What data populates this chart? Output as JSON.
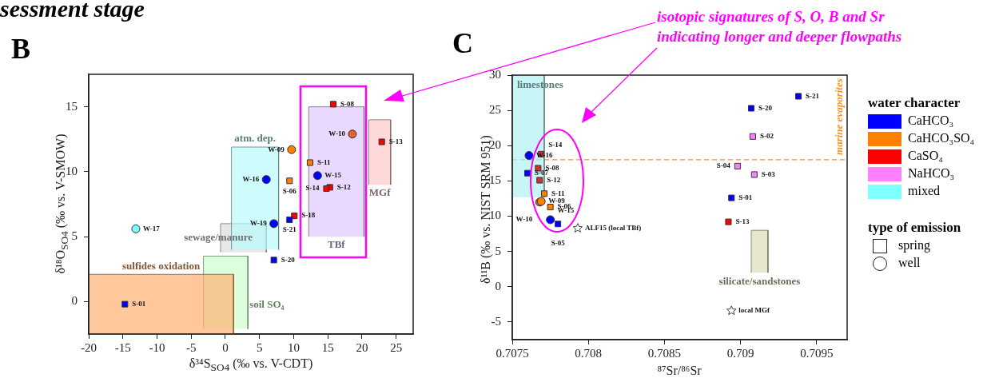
{
  "chart_data": [
    {
      "type": "scatter",
      "title": "B",
      "xlabel": "δ³⁴S$_{SO4}$ (‰ vs. V-CDT)",
      "ylabel": "δ¹⁸O$_{SO4}$ (‰ vs. V-SMOW)",
      "xlim": [
        -20,
        27.5
      ],
      "xticks": [
        -20,
        -15,
        -10,
        -5,
        0,
        5,
        10,
        15,
        20,
        25
      ],
      "ylim": [
        -2.5,
        17.5
      ],
      "yticks": [
        0,
        5,
        10,
        15
      ],
      "legend": "right",
      "annotations": [
        "sessment stage"
      ],
      "series": [
        {
          "type": "area",
          "name": "sulfides oxidation",
          "color": "#ffb070",
          "x": [
            -20,
            -20,
            1.2,
            1.2
          ],
          "values": [
            -2.5,
            2.1,
            2.1,
            -2.5
          ]
        },
        {
          "type": "area",
          "name": "soil SO₄",
          "color": "#ccffcc",
          "x": [
            -3.2,
            -3.2,
            3.3,
            3.3
          ],
          "values": [
            -2.1,
            3.5,
            3.5,
            -2.1
          ]
        },
        {
          "type": "area",
          "name": "atm. dep.",
          "color": "#b8fafa",
          "x": [
            0.9,
            0.9,
            7.8,
            7.8
          ],
          "values": [
            4.0,
            11.9,
            11.9,
            4.0
          ]
        },
        {
          "type": "area",
          "name": "sewage/manure",
          "color": "#dcdcdc",
          "x": [
            -0.7,
            -0.7,
            6.0,
            6.0
          ],
          "values": [
            3.8,
            6.0,
            6.0,
            3.8
          ]
        },
        {
          "type": "area",
          "name": "TBf",
          "color": "#e0c8ff",
          "x": [
            12.2,
            12.2,
            20.3,
            20.3
          ],
          "values": [
            5.0,
            15.0,
            15.0,
            5.0
          ]
        },
        {
          "type": "area",
          "name": "MGf",
          "color": "#ffc8c8",
          "x": [
            21.0,
            21.0,
            24.2,
            24.2
          ],
          "values": [
            9.0,
            14.0,
            14.0,
            9.0
          ]
        },
        {
          "name": "CaHCO₃",
          "marker": "square",
          "color": "#0000ff",
          "x": [
            -14.7,
            9.4,
            7.1
          ],
          "values": [
            -0.2,
            6.3,
            3.2
          ],
          "value_labels": [
            "S-01",
            "S-21",
            "S-20"
          ]
        },
        {
          "marker": "circle",
          "color": "#0000ff",
          "x": [
            6.0,
            13.5,
            7.1
          ],
          "values": [
            9.4,
            9.7,
            6.0
          ],
          "value_labels": [
            "W-16",
            "W-15",
            "W-19"
          ]
        },
        {
          "name": "CaHCO₃SO₄",
          "marker": "square",
          "color": "#ff8000",
          "x": [
            12.4,
            9.4
          ],
          "values": [
            10.7,
            9.3
          ],
          "value_labels": [
            "S-11",
            "S-06"
          ]
        },
        {
          "marker": "circle",
          "colors": [
            "#ff8000",
            "#e06030"
          ],
          "x": [
            9.7,
            18.6
          ],
          "values": [
            11.7,
            12.9
          ],
          "value_labels": [
            "W-09",
            "W-10"
          ]
        },
        {
          "name": "CaSO₄",
          "marker": "square",
          "color": "#ff0000",
          "x": [
            15.8,
            22.9,
            15.3,
            14.8,
            10.1
          ],
          "values": [
            15.2,
            12.3,
            8.8,
            8.7,
            6.6
          ],
          "value_labels": [
            "S-08",
            "S-13",
            "S-12",
            "S-14",
            "S-18"
          ]
        },
        {
          "name": "mixed",
          "marker": "circle",
          "color": "#80ffff",
          "x": [
            -13.1
          ],
          "values": [
            5.6
          ],
          "value_labels": [
            "W-17"
          ]
        }
      ]
    },
    {
      "type": "scatter",
      "title": "C",
      "xlabel": "⁸⁷Sr/⁸⁶Sr",
      "ylabel": "δ¹¹B (‰ vs. NIST SRM 951)",
      "xlim": [
        0.7075,
        0.7097
      ],
      "xticks": [
        0.7075,
        0.708,
        0.7085,
        0.709,
        0.7095
      ],
      "ylim": [
        -7.5,
        30
      ],
      "yticks": [
        -5,
        0,
        5,
        10,
        15,
        20,
        25,
        30
      ],
      "legend": "right",
      "legend_title": "water character",
      "ref_lines": [
        {
          "axis": "y",
          "value": 18,
          "label": "marine evaporites",
          "color": "#ff9020",
          "line_style": "dashed"
        }
      ],
      "annotations": [
        "isotopic signatures of S, O, B and Sr indicating longer and deeper flowpaths",
        "type of emission",
        "spring",
        "well"
      ],
      "series": [
        {
          "type": "area",
          "name": "limestones",
          "color": "#b0f0f0",
          "x": [
            0.7075,
            0.7075,
            0.70771,
            0.70771
          ],
          "values": [
            12.7,
            30,
            30,
            12.7
          ]
        },
        {
          "type": "area",
          "name": "silicate/sandstones",
          "color": "#dcdcb8",
          "x": [
            0.70907,
            0.70907,
            0.70918,
            0.70918
          ],
          "values": [
            2.0,
            8.0,
            8.0,
            2.0
          ]
        },
        {
          "name": "CaHCO₃",
          "marker": "square",
          "color": "#0000ff",
          "x": [
            0.7076,
            0.7078,
            0.70938,
            0.70907,
            0.70894
          ],
          "values": [
            16.1,
            8.9,
            27.0,
            25.3,
            12.6
          ],
          "value_labels": [
            "S-07",
            "S-05",
            "S-21",
            "S-20",
            "S-01"
          ]
        },
        {
          "marker": "circle",
          "color": "#0000ff",
          "x": [
            0.70761,
            0.70775
          ],
          "values": [
            18.6,
            9.5
          ],
          "value_labels": [
            "W-16",
            "W-15"
          ]
        },
        {
          "name": "CaHCO₃SO₄",
          "marker": "square",
          "color": "#ff8000",
          "x": [
            0.70771,
            0.70775
          ],
          "values": [
            13.2,
            11.3
          ],
          "value_labels": [
            "S-11",
            "S-06"
          ]
        },
        {
          "marker": "circle",
          "colors": [
            "#e06030",
            "#ff8000"
          ],
          "x": [
            0.70768,
            0.70769
          ],
          "values": [
            12.0,
            12.1
          ],
          "value_labels": [
            "W-10",
            "W-09"
          ]
        },
        {
          "name": "CaSO₄",
          "marker": "square",
          "color": "#ff0000",
          "colors": [
            "#d03030",
            "#d03030",
            "#d03030",
            "#ff0000"
          ],
          "x": [
            0.70769,
            0.70767,
            0.70768,
            0.70892
          ],
          "values": [
            18.8,
            16.8,
            15.1,
            9.2
          ],
          "value_labels": [
            "S-14",
            "S-08",
            "S-12",
            "S-13"
          ]
        },
        {
          "name": "NaHCO₃",
          "marker": "square",
          "color": "#ff80ff",
          "x": [
            0.70908,
            0.70898,
            0.70909
          ],
          "values": [
            21.3,
            17.1,
            15.9
          ],
          "value_labels": [
            "S-02",
            "S-04",
            "S-03"
          ]
        },
        {
          "marker": "star",
          "color": "#444444",
          "x": [
            0.70793,
            0.70894
          ],
          "values": [
            8.3,
            -3.4
          ],
          "value_labels": [
            "ALF15 (local TBf)",
            "local MGf"
          ]
        }
      ]
    }
  ]
}
